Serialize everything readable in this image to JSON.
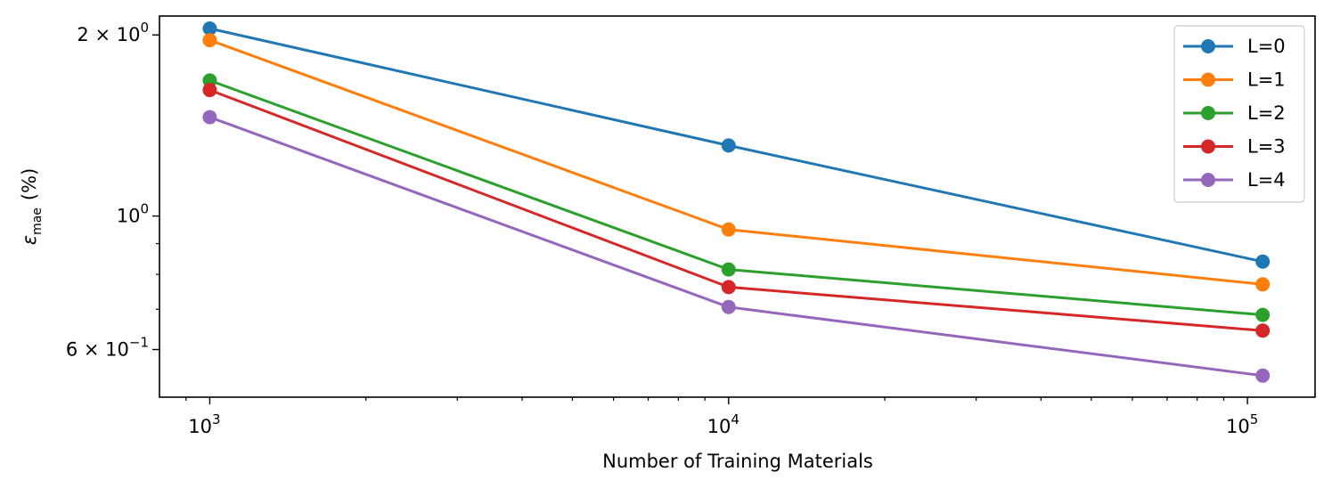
{
  "chart_data": {
    "type": "line",
    "title": "",
    "xlabel": "Number of Training Materials",
    "ylabel_main": "ε",
    "ylabel_sub": "mae",
    "ylabel_suffix": "(%)",
    "xscale": "log",
    "yscale": "log",
    "xlim": [
      800,
      135000
    ],
    "ylim": [
      0.5,
      2.15
    ],
    "x": [
      1000,
      10000,
      107000
    ],
    "x_ticks": [
      {
        "value": 1000,
        "base": "10",
        "exp": "3"
      },
      {
        "value": 10000,
        "base": "10",
        "exp": "4"
      },
      {
        "value": 100000,
        "base": "10",
        "exp": "5"
      }
    ],
    "y_ticks": [
      {
        "value": 2,
        "mant": "2 × 10",
        "exp": "0"
      },
      {
        "value": 1,
        "mant": "10",
        "exp": "0"
      },
      {
        "value": 0.6,
        "mant": "6 × 10",
        "exp": "−1"
      }
    ],
    "series": [
      {
        "name": "L=0",
        "color": "#1f77b4",
        "values": [
          2.05,
          1.31,
          0.84
        ]
      },
      {
        "name": "L=1",
        "color": "#ff7f0e",
        "values": [
          1.96,
          0.95,
          0.77
        ]
      },
      {
        "name": "L=2",
        "color": "#2ca02c",
        "values": [
          1.68,
          0.815,
          0.685
        ]
      },
      {
        "name": "L=3",
        "color": "#d62728",
        "values": [
          1.62,
          0.762,
          0.645
        ]
      },
      {
        "name": "L=4",
        "color": "#9467bd",
        "values": [
          1.46,
          0.706,
          0.543
        ]
      }
    ],
    "legend_position": "top-right",
    "grid": false
  }
}
